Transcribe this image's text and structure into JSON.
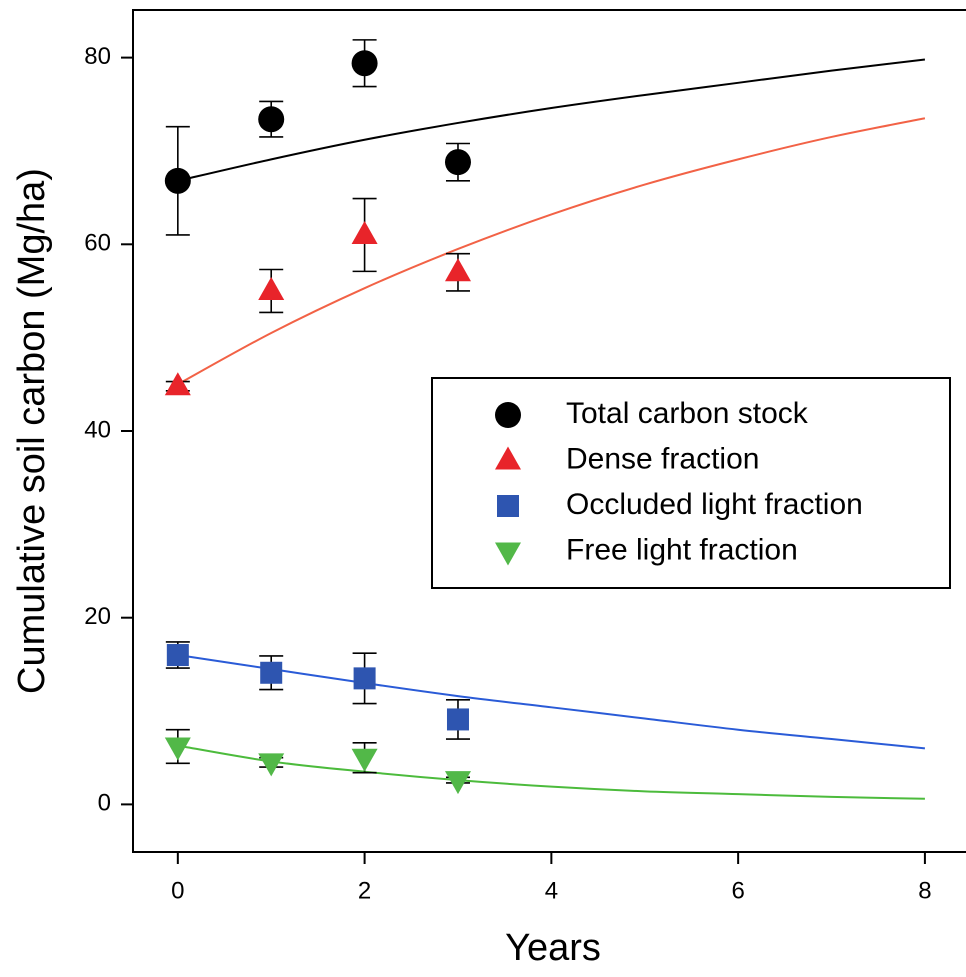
{
  "chart_data": {
    "type": "scatter",
    "x_label": "Years",
    "y_label": "Cumulative soil carbon (Mg/ha)",
    "xlim": [
      -0.48,
      8.44
    ],
    "ylim": [
      -5.1,
      85.1
    ],
    "xticks": [
      0,
      2,
      4,
      6,
      8
    ],
    "yticks": [
      0,
      20,
      40,
      60,
      80
    ],
    "grid": false,
    "legend": "center right",
    "series": [
      {
        "name": "Total carbon stock",
        "color": "#000000",
        "marker": "circle",
        "x": [
          0,
          1,
          2,
          3
        ],
        "values": [
          66.8,
          73.4,
          79.4,
          68.8
        ],
        "errors": [
          5.8,
          1.9,
          2.5,
          2.0
        ]
      },
      {
        "name": "Dense fraction",
        "color": "#e8242a",
        "marker": "triangle-up",
        "x": [
          0,
          1,
          2,
          3
        ],
        "values": [
          44.8,
          55.0,
          61.0,
          57.0
        ],
        "errors": [
          0.5,
          2.3,
          3.9,
          2.0
        ]
      },
      {
        "name": "Occluded light fraction",
        "color": "#2e55b0",
        "marker": "square",
        "x": [
          0,
          1,
          2,
          3
        ],
        "values": [
          16.0,
          14.1,
          13.5,
          9.1
        ],
        "errors": [
          1.4,
          1.8,
          2.7,
          2.1
        ]
      },
      {
        "name": "Free light fraction",
        "color": "#52b848",
        "marker": "triangle-down",
        "x": [
          0,
          1,
          2,
          3
        ],
        "values": [
          6.2,
          4.5,
          5.0,
          2.6
        ],
        "errors": [
          1.8,
          0.5,
          1.6,
          0.3
        ]
      }
    ],
    "fits": [
      {
        "color": "#000000",
        "x": [
          0,
          1,
          2,
          3,
          4,
          5,
          6,
          7,
          8
        ],
        "values": [
          66.8,
          69.1,
          71.2,
          73.0,
          74.6,
          76.0,
          77.3,
          78.6,
          79.8
        ]
      },
      {
        "color": "#f26246",
        "x": [
          0,
          1,
          2,
          3,
          4,
          5,
          6,
          7,
          8
        ],
        "values": [
          45.0,
          50.5,
          55.3,
          59.5,
          63.2,
          66.4,
          69.1,
          71.5,
          73.5
        ]
      },
      {
        "color": "#2a5bd7",
        "x": [
          0,
          1,
          2,
          3,
          4,
          5,
          6,
          7,
          8
        ],
        "values": [
          16.0,
          14.5,
          13.0,
          11.6,
          10.4,
          9.2,
          8.0,
          7.0,
          6.0
        ]
      },
      {
        "color": "#4cbb3c",
        "x": [
          0,
          1,
          2,
          3,
          4,
          5,
          6,
          7,
          8
        ],
        "values": [
          6.3,
          4.6,
          3.5,
          2.6,
          1.9,
          1.4,
          1.1,
          0.8,
          0.6
        ]
      }
    ]
  }
}
